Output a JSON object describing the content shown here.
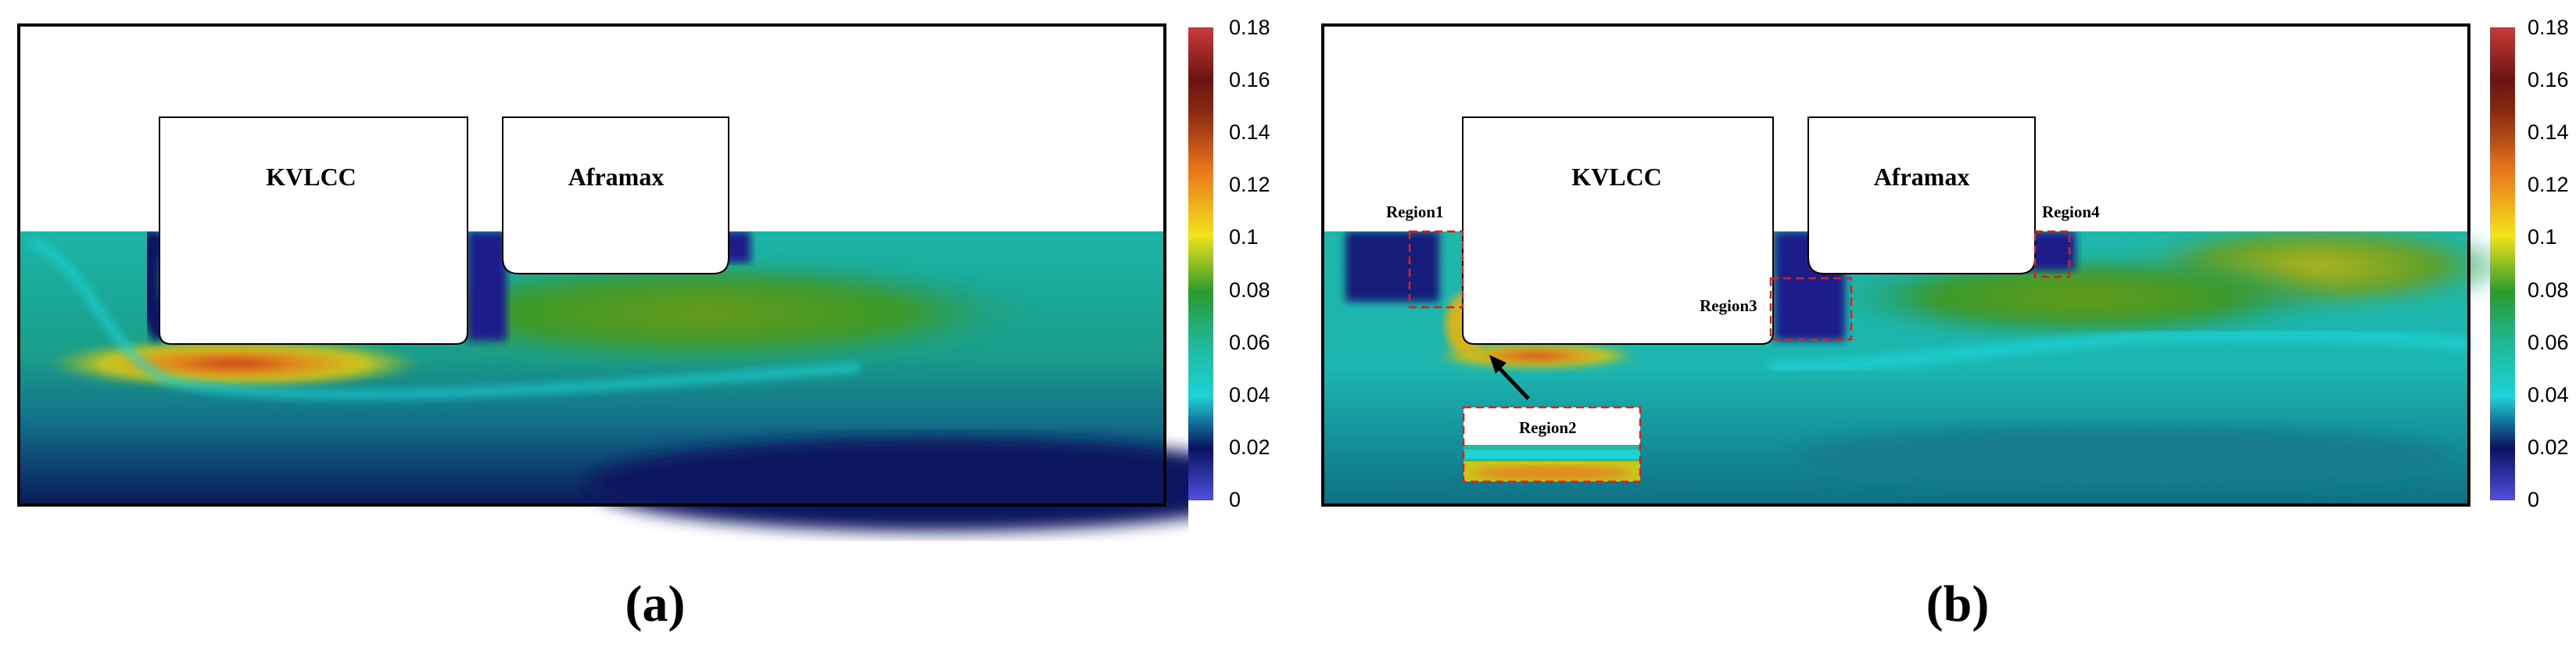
{
  "panels": [
    {
      "caption": "(a)",
      "ships": [
        "KVLCC",
        "Aframax"
      ],
      "regions": []
    },
    {
      "caption": "(b)",
      "ships": [
        "KVLCC",
        "Aframax"
      ],
      "regions": [
        "Region1",
        "Region2",
        "Region3",
        "Region4"
      ]
    }
  ],
  "colorbar": {
    "ticks": [
      "0.18",
      "0.16",
      "0.14",
      "0.12",
      "0.1",
      "0.08",
      "0.06",
      "0.04",
      "0.02",
      "0"
    ],
    "colors": [
      "#c83a3c",
      "#4b0f12",
      "#e2661e",
      "#f2d11b",
      "#268e2c",
      "#1ec6c1",
      "#0a1a6a",
      "#4a4ad8"
    ]
  }
}
